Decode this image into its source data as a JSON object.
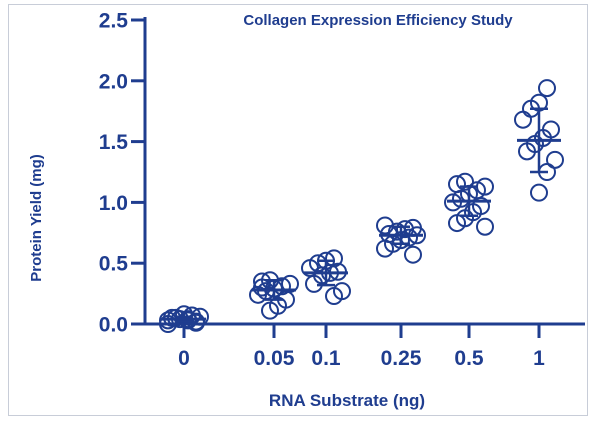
{
  "chart_data": {
    "type": "scatter",
    "title": "Collagen Expression Efficiency Study",
    "xlabel": "RNA Substrate (ng)",
    "ylabel": "Protein Yield (mg)",
    "ylim": [
      0,
      2.5
    ],
    "yticks": [
      "0.0",
      "0.5",
      "1.0",
      "1.5",
      "2.0",
      "2.5"
    ],
    "categories": [
      "0",
      "0.05",
      "0.1",
      "0.25",
      "0.5",
      "1"
    ],
    "color": "#1f3d8f",
    "groups": [
      {
        "category": "0",
        "mean": 0.04,
        "sd": 0.02,
        "points": [
          0.0,
          0.02,
          0.03,
          0.04,
          0.05,
          0.06,
          0.07,
          0.08,
          0.05,
          0.03,
          0.01,
          0.04
        ]
      },
      {
        "category": "0.05",
        "mean": 0.28,
        "sd": 0.08,
        "points": [
          0.36,
          0.35,
          0.33,
          0.31,
          0.29,
          0.27,
          0.24,
          0.2,
          0.15,
          0.11,
          0.3
        ]
      },
      {
        "category": "0.1",
        "mean": 0.42,
        "sd": 0.1,
        "points": [
          0.54,
          0.52,
          0.5,
          0.46,
          0.43,
          0.42,
          0.4,
          0.33,
          0.27,
          0.23
        ]
      },
      {
        "category": "0.25",
        "mean": 0.73,
        "sd": 0.07,
        "points": [
          0.81,
          0.79,
          0.78,
          0.76,
          0.74,
          0.73,
          0.71,
          0.69,
          0.66,
          0.62,
          0.57
        ]
      },
      {
        "category": "0.5",
        "mean": 1.01,
        "sd": 0.12,
        "points": [
          1.17,
          1.15,
          1.13,
          1.1,
          1.07,
          1.03,
          1.0,
          0.97,
          0.92,
          0.87,
          0.83,
          0.8
        ]
      },
      {
        "category": "1",
        "mean": 1.51,
        "sd": 0.26,
        "points": [
          1.94,
          1.82,
          1.77,
          1.68,
          1.6,
          1.53,
          1.48,
          1.42,
          1.35,
          1.25,
          1.08
        ]
      }
    ]
  }
}
